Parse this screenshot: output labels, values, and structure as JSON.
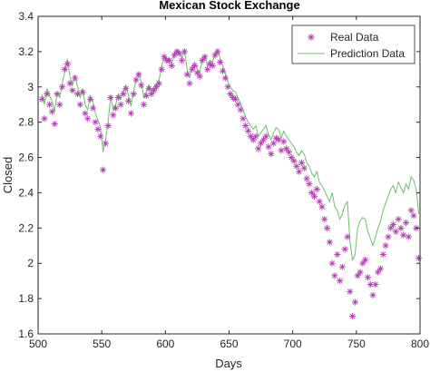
{
  "chart_data": {
    "type": "scatter",
    "title": "Mexican Stock Exchange",
    "xlabel": "Days",
    "ylabel": "Closed",
    "xlim": [
      500,
      800
    ],
    "ylim": [
      1.6,
      3.4
    ],
    "xticks": [
      "500",
      "550",
      "600",
      "650",
      "700",
      "750",
      "800"
    ],
    "yticks": [
      "1.6",
      "1.8",
      "2",
      "2.2",
      "2.4",
      "2.6",
      "2.8",
      "3",
      "3.2",
      "3.4"
    ],
    "grid": false,
    "legend_position": "top-right",
    "colors": {
      "real": "#b43cb4",
      "prediction": "#6fc06f",
      "axis": "#262626"
    },
    "series": [
      {
        "name": "Real Data",
        "marker": "asterisk",
        "x": [
          503,
          505,
          507,
          509,
          511,
          513,
          515,
          517,
          519,
          521,
          523,
          525,
          527,
          529,
          531,
          533,
          535,
          537,
          539,
          541,
          543,
          545,
          547,
          549,
          551,
          553,
          555,
          557,
          559,
          561,
          563,
          565,
          567,
          569,
          571,
          573,
          575,
          577,
          579,
          581,
          583,
          585,
          587,
          589,
          591,
          593,
          595,
          597,
          599,
          601,
          603,
          605,
          607,
          609,
          611,
          613,
          615,
          617,
          619,
          621,
          623,
          625,
          627,
          629,
          631,
          633,
          635,
          637,
          639,
          641,
          643,
          645,
          647,
          649,
          651,
          653,
          655,
          657,
          659,
          661,
          663,
          665,
          667,
          669,
          671,
          673,
          675,
          677,
          679,
          681,
          683,
          685,
          687,
          689,
          691,
          693,
          695,
          697,
          699,
          701,
          703,
          705,
          707,
          709,
          711,
          713,
          715,
          717,
          719,
          721,
          723,
          725,
          727,
          729,
          731,
          733,
          735,
          737,
          739,
          741,
          743,
          745,
          747,
          749,
          751,
          753,
          755,
          757,
          759,
          761,
          763,
          765,
          767,
          769,
          771,
          773,
          775,
          777,
          779,
          781,
          783,
          785,
          787,
          789,
          791,
          793,
          795,
          797,
          799
        ],
        "y": [
          2.93,
          2.82,
          2.96,
          2.9,
          2.86,
          2.79,
          2.96,
          2.9,
          3.0,
          3.1,
          3.13,
          3.02,
          2.98,
          3.05,
          2.96,
          2.9,
          2.97,
          2.85,
          2.82,
          2.93,
          2.88,
          2.8,
          2.76,
          2.72,
          2.53,
          2.68,
          2.78,
          2.94,
          2.84,
          2.88,
          2.94,
          2.9,
          2.96,
          2.99,
          2.92,
          2.85,
          2.96,
          3.04,
          3.07,
          3.01,
          2.9,
          2.95,
          2.99,
          2.96,
          2.98,
          3.0,
          3.02,
          3.1,
          3.17,
          3.15,
          3.15,
          3.12,
          3.18,
          3.2,
          3.19,
          3.15,
          3.2,
          3.07,
          3.02,
          3.1,
          3.12,
          3.08,
          3.06,
          3.15,
          3.17,
          3.1,
          3.13,
          3.12,
          3.18,
          3.2,
          3.14,
          3.09,
          3.05,
          3.0,
          2.96,
          2.94,
          2.93,
          2.9,
          2.87,
          2.82,
          2.78,
          2.75,
          2.72,
          2.7,
          2.72,
          2.65,
          2.68,
          2.7,
          2.72,
          2.66,
          2.62,
          2.68,
          2.71,
          2.7,
          2.64,
          2.69,
          2.65,
          2.63,
          2.6,
          2.58,
          2.55,
          2.52,
          2.57,
          2.54,
          2.48,
          2.45,
          2.4,
          2.38,
          2.42,
          2.35,
          2.32,
          2.25,
          2.2,
          2.12,
          2.0,
          1.93,
          2.05,
          1.9,
          1.98,
          2.08,
          2.15,
          1.84,
          1.7,
          1.78,
          1.93,
          1.95,
          2.0,
          2.02,
          1.92,
          1.88,
          1.82,
          1.88,
          1.95,
          1.97,
          2.05,
          2.1,
          2.15,
          2.2,
          2.22,
          2.18,
          2.25,
          2.2,
          2.16,
          2.23,
          2.15,
          2.3,
          2.27,
          2.2,
          2.03
        ]
      },
      {
        "name": "Prediction Data",
        "marker": "line",
        "x": [
          503,
          505,
          507,
          509,
          511,
          513,
          515,
          517,
          519,
          521,
          523,
          525,
          527,
          529,
          531,
          533,
          535,
          537,
          539,
          541,
          543,
          545,
          547,
          549,
          551,
          553,
          555,
          557,
          559,
          561,
          563,
          565,
          567,
          569,
          571,
          573,
          575,
          577,
          579,
          581,
          583,
          585,
          587,
          589,
          591,
          593,
          595,
          597,
          599,
          601,
          603,
          605,
          607,
          609,
          611,
          613,
          615,
          617,
          619,
          621,
          623,
          625,
          627,
          629,
          631,
          633,
          635,
          637,
          639,
          641,
          643,
          645,
          647,
          649,
          651,
          653,
          655,
          657,
          659,
          661,
          663,
          665,
          667,
          669,
          671,
          673,
          675,
          677,
          679,
          681,
          683,
          685,
          687,
          689,
          691,
          693,
          695,
          697,
          699,
          701,
          703,
          705,
          707,
          709,
          711,
          713,
          715,
          717,
          719,
          721,
          723,
          725,
          727,
          729,
          731,
          733,
          735,
          737,
          739,
          741,
          743,
          745,
          747,
          749,
          751,
          753,
          755,
          757,
          759,
          761,
          763,
          765,
          767,
          769,
          771,
          773,
          775,
          777,
          779,
          781,
          783,
          785,
          787,
          789,
          791,
          793,
          795,
          797,
          799
        ],
        "y": [
          2.96,
          2.9,
          2.99,
          2.95,
          2.92,
          2.86,
          2.97,
          2.94,
          3.02,
          3.09,
          3.16,
          3.06,
          3.01,
          3.07,
          3.0,
          2.94,
          2.99,
          2.9,
          2.87,
          2.95,
          2.92,
          2.85,
          2.81,
          2.77,
          2.63,
          2.7,
          2.8,
          2.95,
          2.87,
          2.9,
          2.96,
          2.93,
          2.98,
          3.01,
          2.95,
          2.89,
          2.97,
          3.05,
          3.08,
          3.03,
          2.94,
          2.97,
          3.01,
          2.98,
          3.0,
          3.02,
          3.04,
          3.11,
          3.18,
          3.16,
          3.16,
          3.13,
          3.19,
          3.21,
          3.2,
          3.16,
          3.21,
          3.1,
          3.05,
          3.12,
          3.14,
          3.1,
          3.08,
          3.16,
          3.18,
          3.12,
          3.15,
          3.14,
          3.19,
          3.21,
          3.16,
          3.12,
          3.08,
          3.03,
          3.0,
          2.98,
          2.97,
          2.94,
          2.91,
          2.87,
          2.83,
          2.8,
          2.78,
          2.76,
          2.78,
          2.72,
          2.74,
          2.76,
          2.78,
          2.73,
          2.7,
          2.74,
          2.77,
          2.76,
          2.71,
          2.75,
          2.72,
          2.7,
          2.68,
          2.66,
          2.63,
          2.61,
          2.64,
          2.62,
          2.57,
          2.55,
          2.51,
          2.49,
          2.52,
          2.46,
          2.44,
          2.41,
          2.38,
          2.35,
          2.4,
          2.32,
          2.3,
          2.25,
          2.28,
          2.33,
          2.35,
          2.12,
          2.02,
          2.05,
          2.2,
          2.24,
          2.26,
          2.25,
          2.18,
          2.14,
          2.1,
          2.15,
          2.2,
          2.24,
          2.3,
          2.34,
          2.38,
          2.42,
          2.44,
          2.4,
          2.46,
          2.43,
          2.4,
          2.45,
          2.42,
          2.49,
          2.47,
          2.42,
          2.28
        ]
      }
    ]
  }
}
